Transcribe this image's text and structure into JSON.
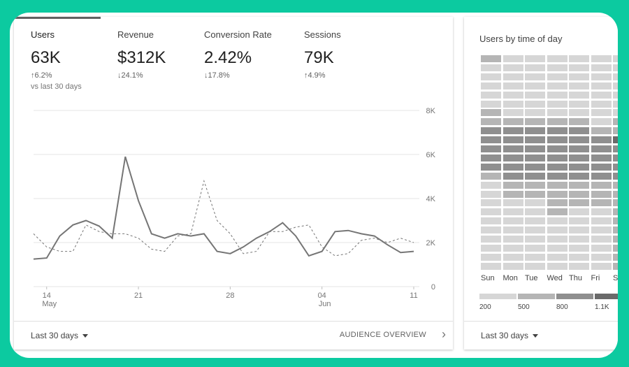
{
  "overview": {
    "metrics": [
      {
        "name": "Users",
        "value": "63K",
        "delta": "6.2%",
        "dir": "up",
        "sub": "vs last 30 days"
      },
      {
        "name": "Revenue",
        "value": "$312K",
        "delta": "24.1%",
        "dir": "down"
      },
      {
        "name": "Conversion Rate",
        "value": "2.42%",
        "delta": "17.8%",
        "dir": "down"
      },
      {
        "name": "Sessions",
        "value": "79K",
        "delta": "4.9%",
        "dir": "up"
      }
    ],
    "footer": {
      "range_label": "Last 30 days",
      "link_label": "AUDIENCE OVERVIEW"
    }
  },
  "chart_data": {
    "type": "line",
    "x_tick_labels": [
      "14",
      "21",
      "28",
      "04",
      "11"
    ],
    "x_tick_sublabels": [
      "May",
      "",
      "",
      "Jun",
      ""
    ],
    "y_tick_labels": [
      "0",
      "2K",
      "4K",
      "6K",
      "8K"
    ],
    "ylim": [
      0,
      8000
    ],
    "grid": true,
    "series": [
      {
        "style": "solid",
        "color": "#757575",
        "values": [
          1250,
          1300,
          2300,
          2800,
          3000,
          2750,
          2200,
          5900,
          3900,
          2400,
          2200,
          2400,
          2300,
          2400,
          1600,
          1500,
          1800,
          2200,
          2500,
          2900,
          2300,
          1400,
          1600,
          2500,
          2550,
          2400,
          2300,
          1900,
          1550,
          1600
        ]
      },
      {
        "style": "dashed",
        "color": "#757575",
        "values": [
          2400,
          1800,
          1600,
          1600,
          2800,
          2500,
          2400,
          2400,
          2200,
          1700,
          1600,
          2300,
          2400,
          4800,
          3000,
          2400,
          1500,
          1600,
          2500,
          2500,
          2700,
          2800,
          1800,
          1400,
          1500,
          2100,
          2200,
          2000,
          2200,
          2000
        ]
      }
    ]
  },
  "side": {
    "title": "Users by time of day",
    "days": [
      "Sun",
      "Mon",
      "Tue",
      "Wed",
      "Thu",
      "Fri",
      "S"
    ],
    "legend": [
      "200",
      "500",
      "800",
      "1.1K"
    ],
    "legend_colors": [
      "#d6d6d6",
      "#b5b5b5",
      "#8f8f8f",
      "#6a6a6a"
    ],
    "heatmap": [
      [
        2,
        1,
        1,
        1,
        1,
        1,
        1
      ],
      [
        1,
        1,
        1,
        1,
        1,
        1,
        1
      ],
      [
        1,
        1,
        1,
        1,
        1,
        1,
        1
      ],
      [
        1,
        1,
        1,
        1,
        1,
        1,
        1
      ],
      [
        1,
        1,
        1,
        1,
        1,
        1,
        1
      ],
      [
        1,
        1,
        1,
        1,
        1,
        1,
        1
      ],
      [
        2,
        1,
        1,
        1,
        1,
        1,
        1
      ],
      [
        2,
        2,
        2,
        2,
        2,
        1,
        2
      ],
      [
        3,
        3,
        3,
        3,
        3,
        2,
        2
      ],
      [
        3,
        3,
        3,
        3,
        3,
        3,
        4
      ],
      [
        3,
        3,
        3,
        3,
        3,
        3,
        3
      ],
      [
        3,
        3,
        3,
        3,
        3,
        3,
        3
      ],
      [
        3,
        3,
        3,
        3,
        3,
        3,
        3
      ],
      [
        2,
        3,
        3,
        3,
        3,
        3,
        3
      ],
      [
        1,
        2,
        2,
        2,
        2,
        2,
        2
      ],
      [
        1,
        2,
        2,
        2,
        2,
        2,
        2
      ],
      [
        1,
        1,
        1,
        2,
        2,
        2,
        2
      ],
      [
        1,
        1,
        1,
        2,
        1,
        1,
        2
      ],
      [
        1,
        1,
        1,
        1,
        1,
        1,
        2
      ],
      [
        1,
        1,
        1,
        1,
        1,
        1,
        2
      ],
      [
        1,
        1,
        1,
        1,
        1,
        1,
        2
      ],
      [
        1,
        1,
        1,
        1,
        1,
        1,
        2
      ],
      [
        1,
        1,
        1,
        1,
        1,
        1,
        2
      ],
      [
        1,
        1,
        1,
        1,
        1,
        1,
        2
      ]
    ],
    "footer": {
      "range_label": "Last 30 days"
    }
  },
  "icons": {
    "up_arrow": "↑",
    "down_arrow": "↓",
    "chevron": "›"
  }
}
